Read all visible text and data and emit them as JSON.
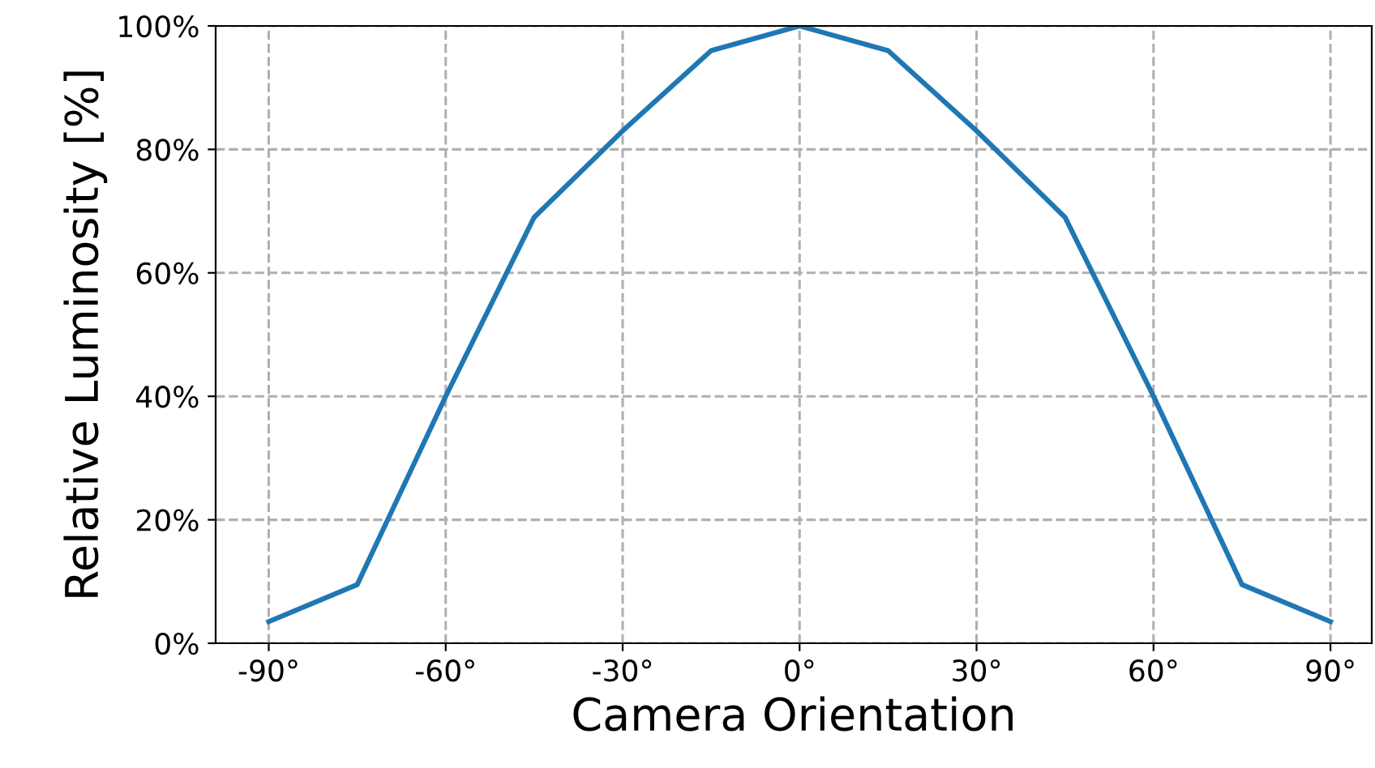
{
  "chart_data": {
    "type": "line",
    "xlabel": "Camera Orientation",
    "ylabel": "Relative Luminosity [%]",
    "x": [
      -90,
      -75,
      -60,
      -45,
      -30,
      -15,
      0,
      15,
      30,
      45,
      60,
      75,
      90
    ],
    "series": [
      {
        "color": "#1f77b4",
        "values": [
          3.5,
          9.5,
          40,
          69,
          83,
          96,
          100,
          96,
          83,
          69,
          40,
          9.5,
          3.5
        ]
      }
    ],
    "xlim": [
      -99,
      97
    ],
    "ylim": [
      0,
      100
    ],
    "xticks": [
      {
        "value": -90,
        "label": "-90°"
      },
      {
        "value": -60,
        "label": "-60°"
      },
      {
        "value": -30,
        "label": "-30°"
      },
      {
        "value": 0,
        "label": "0°"
      },
      {
        "value": 30,
        "label": "30°"
      },
      {
        "value": 60,
        "label": "60°"
      },
      {
        "value": 90,
        "label": "90°"
      }
    ],
    "yticks": [
      {
        "value": 0,
        "label": "0%"
      },
      {
        "value": 20,
        "label": "20%"
      },
      {
        "value": 40,
        "label": "40%"
      },
      {
        "value": 60,
        "label": "60%"
      },
      {
        "value": 80,
        "label": "80%"
      },
      {
        "value": 100,
        "label": "100%"
      }
    ],
    "grid": true,
    "line_style": "solid",
    "marker": "none",
    "legend": false
  }
}
